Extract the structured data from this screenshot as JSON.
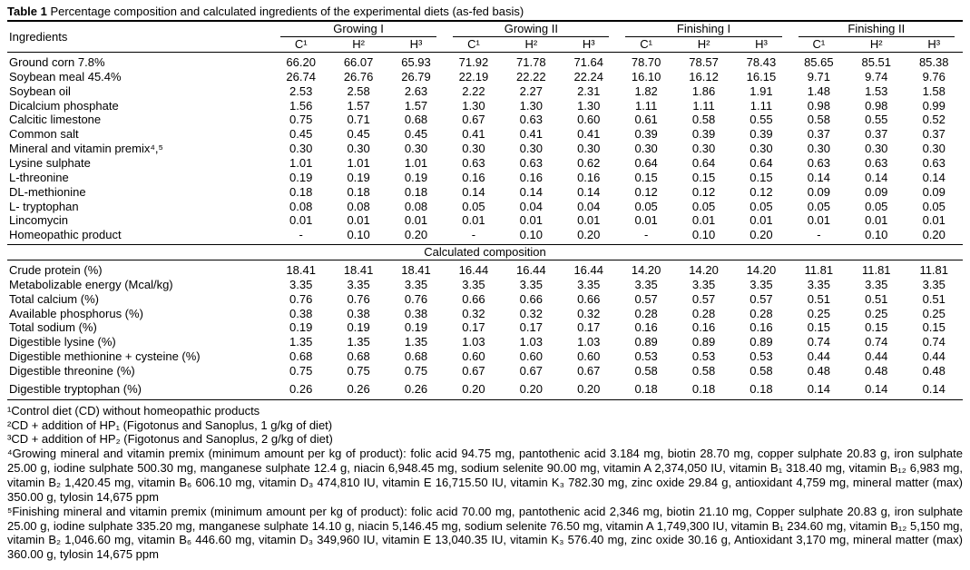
{
  "page": {
    "background": "#ffffff",
    "text_color": "#000000",
    "rule_color": "#000000"
  },
  "table": {
    "caption": {
      "label": "Table 1",
      "text": " Percentage composition and calculated ingredients of the experimental diets (as-fed basis)"
    },
    "ingredients_header": "Ingredients",
    "groups": [
      "Growing I",
      "Growing II",
      "Finishing I",
      "Finishing II"
    ],
    "subcolumns": [
      "C¹",
      "H²",
      "H³"
    ],
    "ingredient_rows": [
      {
        "label": "Ground corn 7.8%",
        "values": [
          "66.20",
          "66.07",
          "65.93",
          "71.92",
          "71.78",
          "71.64",
          "78.70",
          "78.57",
          "78.43",
          "85.65",
          "85.51",
          "85.38"
        ]
      },
      {
        "label": "Soybean meal 45.4%",
        "values": [
          "26.74",
          "26.76",
          "26.79",
          "22.19",
          "22.22",
          "22.24",
          "16.10",
          "16.12",
          "16.15",
          "9.71",
          "9.74",
          "9.76"
        ]
      },
      {
        "label": "Soybean oil",
        "values": [
          "2.53",
          "2.58",
          "2.63",
          "2.22",
          "2.27",
          "2.31",
          "1.82",
          "1.86",
          "1.91",
          "1.48",
          "1.53",
          "1.58"
        ]
      },
      {
        "label": "Dicalcium phosphate",
        "values": [
          "1.56",
          "1.57",
          "1.57",
          "1.30",
          "1.30",
          "1.30",
          "1.11",
          "1.11",
          "1.11",
          "0.98",
          "0.98",
          "0.99"
        ]
      },
      {
        "label": "Calcitic limestone",
        "values": [
          "0.75",
          "0.71",
          "0.68",
          "0.67",
          "0.63",
          "0.60",
          "0.61",
          "0.58",
          "0.55",
          "0.58",
          "0.55",
          "0.52"
        ]
      },
      {
        "label": "Common salt",
        "values": [
          "0.45",
          "0.45",
          "0.45",
          "0.41",
          "0.41",
          "0.41",
          "0.39",
          "0.39",
          "0.39",
          "0.37",
          "0.37",
          "0.37"
        ]
      },
      {
        "label": "Mineral and vitamin premix⁴,⁵",
        "values": [
          "0.30",
          "0.30",
          "0.30",
          "0.30",
          "0.30",
          "0.30",
          "0.30",
          "0.30",
          "0.30",
          "0.30",
          "0.30",
          "0.30"
        ]
      },
      {
        "label": "Lysine sulphate",
        "values": [
          "1.01",
          "1.01",
          "1.01",
          "0.63",
          "0.63",
          "0.62",
          "0.64",
          "0.64",
          "0.64",
          "0.63",
          "0.63",
          "0.63"
        ]
      },
      {
        "label": "L-threonine",
        "values": [
          "0.19",
          "0.19",
          "0.19",
          "0.16",
          "0.16",
          "0.16",
          "0.15",
          "0.15",
          "0.15",
          "0.14",
          "0.14",
          "0.14"
        ]
      },
      {
        "label": "DL-methionine",
        "values": [
          "0.18",
          "0.18",
          "0.18",
          "0.14",
          "0.14",
          "0.14",
          "0.12",
          "0.12",
          "0.12",
          "0.09",
          "0.09",
          "0.09"
        ]
      },
      {
        "label": "L- tryptophan",
        "values": [
          "0.08",
          "0.08",
          "0.08",
          "0.05",
          "0.04",
          "0.04",
          "0.05",
          "0.05",
          "0.05",
          "0.05",
          "0.05",
          "0.05"
        ]
      },
      {
        "label": "Lincomycin",
        "values": [
          "0.01",
          "0.01",
          "0.01",
          "0.01",
          "0.01",
          "0.01",
          "0.01",
          "0.01",
          "0.01",
          "0.01",
          "0.01",
          "0.01"
        ]
      },
      {
        "label": "Homeopathic product",
        "values": [
          "-",
          "0.10",
          "0.20",
          "-",
          "0.10",
          "0.20",
          "-",
          "0.10",
          "0.20",
          "-",
          "0.10",
          "0.20"
        ]
      }
    ],
    "calculated_header": "Calculated composition",
    "calculated_rows": [
      {
        "label": "Crude protein (%)",
        "values": [
          "18.41",
          "18.41",
          "18.41",
          "16.44",
          "16.44",
          "16.44",
          "14.20",
          "14.20",
          "14.20",
          "11.81",
          "11.81",
          "11.81"
        ]
      },
      {
        "label": "Metabolizable energy (Mcal/kg)",
        "values": [
          "3.35",
          "3.35",
          "3.35",
          "3.35",
          "3.35",
          "3.35",
          "3.35",
          "3.35",
          "3.35",
          "3.35",
          "3.35",
          "3.35"
        ]
      },
      {
        "label": "Total calcium (%)",
        "values": [
          "0.76",
          "0.76",
          "0.76",
          "0.66",
          "0.66",
          "0.66",
          "0.57",
          "0.57",
          "0.57",
          "0.51",
          "0.51",
          "0.51"
        ]
      },
      {
        "label": "Available phosphorus (%)",
        "values": [
          "0.38",
          "0.38",
          "0.38",
          "0.32",
          "0.32",
          "0.32",
          "0.28",
          "0.28",
          "0.28",
          "0.25",
          "0.25",
          "0.25"
        ]
      },
      {
        "label": "Total sodium (%)",
        "values": [
          "0.19",
          "0.19",
          "0.19",
          "0.17",
          "0.17",
          "0.17",
          "0.16",
          "0.16",
          "0.16",
          "0.15",
          "0.15",
          "0.15"
        ]
      },
      {
        "label": "Digestible lysine (%)",
        "values": [
          "1.35",
          "1.35",
          "1.35",
          "1.03",
          "1.03",
          "1.03",
          "0.89",
          "0.89",
          "0.89",
          "0.74",
          "0.74",
          "0.74"
        ]
      },
      {
        "label": "Digestible methionine + cysteine (%)",
        "values": [
          "0.68",
          "0.68",
          "0.68",
          "0.60",
          "0.60",
          "0.60",
          "0.53",
          "0.53",
          "0.53",
          "0.44",
          "0.44",
          "0.44"
        ]
      },
      {
        "label": "Digestible threonine (%)",
        "values": [
          "0.75",
          "0.75",
          "0.75",
          "0.67",
          "0.67",
          "0.67",
          "0.58",
          "0.58",
          "0.58",
          "0.48",
          "0.48",
          "0.48"
        ]
      },
      {
        "label": "Digestible tryptophan (%)",
        "values": [
          "0.26",
          "0.26",
          "0.26",
          "0.20",
          "0.20",
          "0.20",
          "0.18",
          "0.18",
          "0.18",
          "0.14",
          "0.14",
          "0.14"
        ]
      }
    ],
    "footnotes": [
      "¹Control diet (CD) without homeopathic products",
      "²CD + addition of HP₁ (Figotonus and Sanoplus, 1 g/kg of diet)",
      "³CD + addition of HP₂ (Figotonus and Sanoplus, 2 g/kg of diet)",
      "⁴Growing mineral and vitamin premix (minimum amount per kg of product): folic acid 94.75 mg, pantothenic acid 3.184 mg, biotin 28.70 mg, copper sulphate 20.83 g, iron sulphate 25.00 g, iodine sulphate 500.30 mg, manganese sulphate 12.4 g, niacin 6,948.45 mg, sodium selenite 90.00 mg, vitamin A 2,374,050 IU, vitamin B₁ 318.40 mg, vitamin B₁₂ 6,983 mg, vitamin B₂ 1,420.45 mg, vitamin B₆ 606.10 mg, vitamin D₃ 474,810 IU, vitamin E 16,715.50 IU, vitamin K₃ 782.30 mg, zinc oxide 29.84 g, antioxidant 4,759 mg, mineral matter (max) 350.00 g, tylosin 14,675 ppm",
      "⁵Finishing mineral and vitamin premix (minimum amount per kg of product): folic acid 70.00 mg, pantothenic acid 2,346 mg, biotin 21.10 mg, Copper sulphate 20.83 g, iron sulphate 25.00 g, iodine sulphate 335.20 mg, manganese sulphate 14.10 g, niacin 5,146.45 mg, sodium selenite 76.50 mg, vitamin A 1,749,300 IU, vitamin B₁ 234.60 mg, vitamin B₁₂ 5,150 mg, vitamin B₂ 1,046.60 mg, vitamin B₆ 446.60 mg, vitamin D₃ 349,960 IU, vitamin E 13,040.35 IU, vitamin K₃ 576.40 mg, zinc oxide 30.16 g, Antioxidant 3,170 mg, mineral matter (max) 360.00 g, tylosin 14,675 ppm"
    ]
  }
}
